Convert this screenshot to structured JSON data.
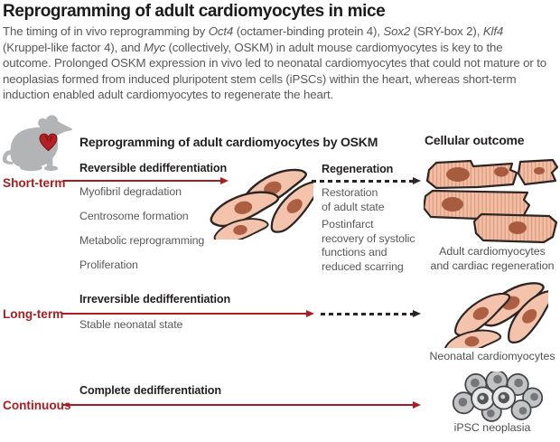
{
  "title": "Reprogramming of adult cardiomyocytes in mice",
  "intro_segments": [
    {
      "text": "The timing of in vivo reprogramming by "
    },
    {
      "text": "Oct4",
      "italic": true
    },
    {
      "text": " (octamer-binding protein 4), "
    },
    {
      "text": "Sox2",
      "italic": true
    },
    {
      "text": " (SRY-box 2), "
    },
    {
      "text": "Klf4",
      "italic": true
    },
    {
      "text": " (Kruppel-like factor 4), and "
    },
    {
      "text": "Myc",
      "italic": true
    },
    {
      "text": " (collectively, OSKM) in adult mouse cardiomyocytes is key to the outcome. Prolonged OSKM expression in vivo led to neonatal cardiomyocytes that could not mature or to neoplasias formed from induced pluripotent stem cells (iPSCs) within the heart, whereas short-term induction enabled adult cardiomyocytes to regenerate the heart."
    }
  ],
  "diagram": {
    "left_header": "Reprogramming of adult cardiomyocytes by OSKM",
    "right_header": "Cellular outcome",
    "short_term": {
      "label": "Short-term",
      "phase1_heading": "Reversible dedifferentiation",
      "phase1_items": [
        "Myofibril degradation",
        "Centrosome formation",
        "Metabolic reprogramming",
        "Proliferation"
      ],
      "phase2_heading": "Regeneration",
      "phase2_item1": "Restoration\nof adult state",
      "phase2_item2": "Postinfarct\nrecovery of systolic\nfunctions and\nreduced scarring",
      "outcome_caption": "Adult cardiomyocytes\nand cardiac regeneration"
    },
    "long_term": {
      "label": "Long-term",
      "heading": "Irreversible dedifferentiation",
      "item": "Stable neonatal state",
      "outcome_caption": "Neonatal cardiomyocytes"
    },
    "continuous": {
      "label": "Continuous",
      "heading": "Complete dedifferentiation",
      "outcome_caption": "iPSC neoplasia"
    },
    "icons": {
      "mouse": "mouse-silhouette",
      "heart": "heart",
      "dedifferentiated_cells": "spindle-cell-cluster",
      "adult_cells": "striated-cardiomyocyte-cluster",
      "neonatal_cells": "spindle-cell-cluster",
      "ipsc": "ipsc-cell-cluster"
    }
  },
  "colors": {
    "accent_red": "#a91e23",
    "body_text": "#58595b",
    "heading_text": "#231f20",
    "mouse_gray": "#b2b4b6",
    "cell_fill": "#f3c3ab",
    "cell_nucleus": "#ad5f43",
    "ipsc_fill": "#c3c4c6"
  }
}
